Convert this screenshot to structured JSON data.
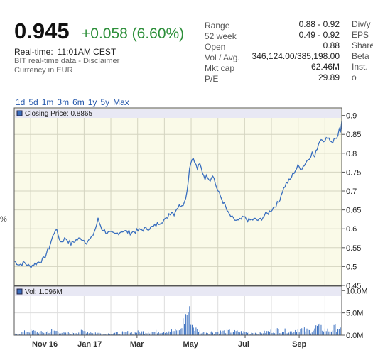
{
  "quote": {
    "price": "0.945",
    "change": "+0.058 (6.60%)",
    "realtime_label": "Real-time:",
    "realtime_time": "11:01AM CEST",
    "disclaimer": "BIT real-time data - Disclaimer",
    "currency": "Currency in EUR"
  },
  "stats": [
    {
      "label": "Range",
      "value": "0.88 - 0.92"
    },
    {
      "label": "52 week",
      "value": "0.49 - 0.92"
    },
    {
      "label": "Open",
      "value": "0.88"
    },
    {
      "label": "Vol / Avg.",
      "value": "346,124.00/385,198.00"
    },
    {
      "label": "Mkt cap",
      "value": "62.46M"
    },
    {
      "label": "P/E",
      "value": "29.89"
    }
  ],
  "stats_right_labels": [
    "Div/y",
    "EPS",
    "Share",
    "Beta",
    "Inst. o"
  ],
  "ranges": [
    "1d",
    "5d",
    "1m",
    "3m",
    "6m",
    "1y",
    "5y",
    "Max"
  ],
  "side_text": "%",
  "chart_data": {
    "type": "line",
    "price_legend": "Closing Price: 0.8865",
    "volume_legend": "Vol: 1.096M",
    "x_tick_labels": [
      "Nov 16",
      "Jan 17",
      "Mar",
      "May",
      "Jul",
      "Sep"
    ],
    "y_tick_labels": [
      "0.45",
      "0.5",
      "0.55",
      "0.6",
      "0.65",
      "0.7",
      "0.75",
      "0.8",
      "0.85",
      "0.9"
    ],
    "ylim": [
      0.45,
      0.92
    ],
    "volume_tick_labels": [
      "10.0M",
      "5.0M",
      "0.0M"
    ],
    "volume_ylim": [
      0,
      11
    ],
    "x_count": 240,
    "price_keypoints": [
      [
        0,
        0.515
      ],
      [
        4,
        0.505
      ],
      [
        8,
        0.51
      ],
      [
        12,
        0.5
      ],
      [
        18,
        0.51
      ],
      [
        23,
        0.52
      ],
      [
        27,
        0.55
      ],
      [
        30,
        0.58
      ],
      [
        32,
        0.6
      ],
      [
        34,
        0.585
      ],
      [
        36,
        0.565
      ],
      [
        40,
        0.575
      ],
      [
        44,
        0.56
      ],
      [
        48,
        0.57
      ],
      [
        52,
        0.575
      ],
      [
        56,
        0.565
      ],
      [
        60,
        0.575
      ],
      [
        63,
        0.6
      ],
      [
        65,
        0.625
      ],
      [
        68,
        0.6
      ],
      [
        72,
        0.59
      ],
      [
        78,
        0.585
      ],
      [
        84,
        0.595
      ],
      [
        90,
        0.59
      ],
      [
        96,
        0.595
      ],
      [
        102,
        0.6
      ],
      [
        108,
        0.605
      ],
      [
        114,
        0.62
      ],
      [
        118,
        0.625
      ],
      [
        120,
        0.64
      ],
      [
        122,
        0.645
      ],
      [
        124,
        0.64
      ],
      [
        126,
        0.655
      ],
      [
        128,
        0.66
      ],
      [
        130,
        0.665
      ],
      [
        132,
        0.67
      ],
      [
        134,
        0.7
      ],
      [
        136,
        0.76
      ],
      [
        138,
        0.79
      ],
      [
        140,
        0.775
      ],
      [
        142,
        0.76
      ],
      [
        144,
        0.77
      ],
      [
        146,
        0.75
      ],
      [
        148,
        0.735
      ],
      [
        150,
        0.74
      ],
      [
        152,
        0.73
      ],
      [
        154,
        0.745
      ],
      [
        156,
        0.72
      ],
      [
        158,
        0.7
      ],
      [
        160,
        0.685
      ],
      [
        163,
        0.665
      ],
      [
        166,
        0.64
      ],
      [
        170,
        0.625
      ],
      [
        174,
        0.62
      ],
      [
        178,
        0.63
      ],
      [
        182,
        0.622
      ],
      [
        186,
        0.625
      ],
      [
        190,
        0.622
      ],
      [
        194,
        0.635
      ],
      [
        198,
        0.645
      ],
      [
        202,
        0.66
      ],
      [
        205,
        0.67
      ],
      [
        208,
        0.7
      ],
      [
        211,
        0.72
      ],
      [
        214,
        0.73
      ],
      [
        217,
        0.75
      ],
      [
        220,
        0.765
      ],
      [
        223,
        0.76
      ],
      [
        226,
        0.775
      ],
      [
        229,
        0.79
      ],
      [
        231,
        0.8
      ],
      [
        233,
        0.79
      ],
      [
        235,
        0.815
      ],
      [
        237,
        0.835
      ],
      [
        239,
        0.84
      ],
      [
        241,
        0.83
      ],
      [
        243,
        0.845
      ],
      [
        245,
        0.835
      ],
      [
        247,
        0.83
      ],
      [
        249,
        0.84
      ],
      [
        251,
        0.845
      ],
      [
        252,
        0.86
      ],
      [
        253,
        0.85
      ],
      [
        254,
        0.885
      ]
    ],
    "volume_keypoints": [
      [
        0,
        0.2
      ],
      [
        12,
        1.0
      ],
      [
        22,
        0.6
      ],
      [
        30,
        1.1
      ],
      [
        40,
        0.4
      ],
      [
        55,
        0.9
      ],
      [
        70,
        0.3
      ],
      [
        90,
        0.7
      ],
      [
        110,
        0.8
      ],
      [
        120,
        1.0
      ],
      [
        128,
        0.9
      ],
      [
        136,
        6.5
      ],
      [
        138,
        2.4
      ],
      [
        140,
        1.5
      ],
      [
        146,
        0.6
      ],
      [
        165,
        0.9
      ],
      [
        190,
        0.5
      ],
      [
        205,
        1.2
      ],
      [
        215,
        0.8
      ],
      [
        220,
        1.5
      ],
      [
        230,
        0.9
      ],
      [
        235,
        2.0
      ],
      [
        240,
        1.4
      ],
      [
        245,
        1.0
      ],
      [
        248,
        1.6
      ],
      [
        252,
        1.8
      ],
      [
        254,
        0.8
      ]
    ]
  },
  "colors": {
    "price_line": "#3a6fbf",
    "plot_bg": "#fafae8",
    "change_green": "#2d8f3a",
    "grid": "#d4d4c0"
  }
}
